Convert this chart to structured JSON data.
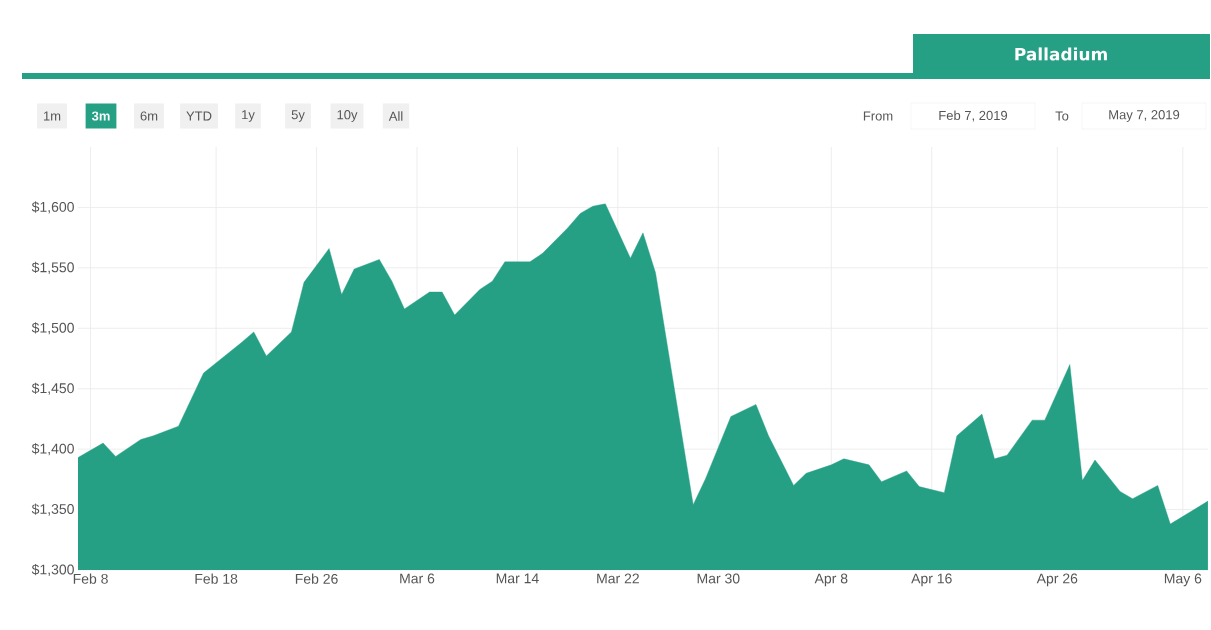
{
  "chart_data": {
    "type": "area",
    "title": "Palladium",
    "x": [
      "2019-02-07",
      "2019-02-09",
      "2019-02-10",
      "2019-02-12",
      "2019-02-13",
      "2019-02-15",
      "2019-02-17",
      "2019-02-20",
      "2019-02-21",
      "2019-02-22",
      "2019-02-24",
      "2019-02-25",
      "2019-02-27",
      "2019-02-28",
      "2019-03-01",
      "2019-03-03",
      "2019-03-04",
      "2019-03-05",
      "2019-03-07",
      "2019-03-08",
      "2019-03-09",
      "2019-03-11",
      "2019-03-12",
      "2019-03-13",
      "2019-03-15",
      "2019-03-16",
      "2019-03-18",
      "2019-03-19",
      "2019-03-20",
      "2019-03-21",
      "2019-03-23",
      "2019-03-24",
      "2019-03-25",
      "2019-03-28",
      "2019-03-29",
      "2019-03-31",
      "2019-04-02",
      "2019-04-03",
      "2019-04-05",
      "2019-04-06",
      "2019-04-08",
      "2019-04-09",
      "2019-04-11",
      "2019-04-12",
      "2019-04-14",
      "2019-04-15",
      "2019-04-17",
      "2019-04-18",
      "2019-04-20",
      "2019-04-21",
      "2019-04-22",
      "2019-04-24",
      "2019-04-25",
      "2019-04-27",
      "2019-04-28",
      "2019-04-29",
      "2019-05-01",
      "2019-05-02",
      "2019-05-04",
      "2019-05-05",
      "2019-05-08"
    ],
    "values": [
      1393,
      1405,
      1394,
      1408,
      1411,
      1419,
      1463,
      1488,
      1497,
      1477,
      1497,
      1538,
      1566,
      1528,
      1549,
      1557,
      1539,
      1516,
      1530,
      1530,
      1511,
      1532,
      1539,
      1555,
      1555,
      1562,
      1583,
      1595,
      1601,
      1603,
      1558,
      1579,
      1546,
      1354,
      1376,
      1427,
      1437,
      1411,
      1370,
      1380,
      1387,
      1392,
      1387,
      1373,
      1382,
      1369,
      1364,
      1411,
      1429,
      1392,
      1395,
      1424,
      1424,
      1470,
      1374,
      1391,
      1365,
      1359,
      1370,
      1338,
      1357
    ],
    "color": "#26a085",
    "xlim": [
      "2019-02-07",
      "2019-05-08"
    ],
    "ylim": [
      1300,
      1650
    ],
    "xticks": [
      {
        "value": "2019-02-08",
        "label": "Feb 8"
      },
      {
        "value": "2019-02-18",
        "label": "Feb 18"
      },
      {
        "value": "2019-02-26",
        "label": "Feb 26"
      },
      {
        "value": "2019-03-06",
        "label": "Mar 6"
      },
      {
        "value": "2019-03-14",
        "label": "Mar 14"
      },
      {
        "value": "2019-03-22",
        "label": "Mar 22"
      },
      {
        "value": "2019-03-30",
        "label": "Mar 30"
      },
      {
        "value": "2019-04-08",
        "label": "Apr 8"
      },
      {
        "value": "2019-04-16",
        "label": "Apr 16"
      },
      {
        "value": "2019-04-26",
        "label": "Apr 26"
      },
      {
        "value": "2019-05-06",
        "label": "May 6"
      }
    ],
    "yticks": [
      {
        "value": 1300,
        "label": "$1,300"
      },
      {
        "value": 1350,
        "label": "$1,350"
      },
      {
        "value": 1400,
        "label": "$1,400"
      },
      {
        "value": 1450,
        "label": "$1,450"
      },
      {
        "value": 1500,
        "label": "$1,500"
      },
      {
        "value": 1550,
        "label": "$1,550"
      },
      {
        "value": 1600,
        "label": "$1,600"
      }
    ],
    "grid": true,
    "annotations": [
      "1m",
      "3m",
      "6m",
      "YTD",
      "1y",
      "5y",
      "10y",
      "All",
      "From",
      "Feb 7, 2019",
      "To",
      "May 7, 2019"
    ]
  }
}
